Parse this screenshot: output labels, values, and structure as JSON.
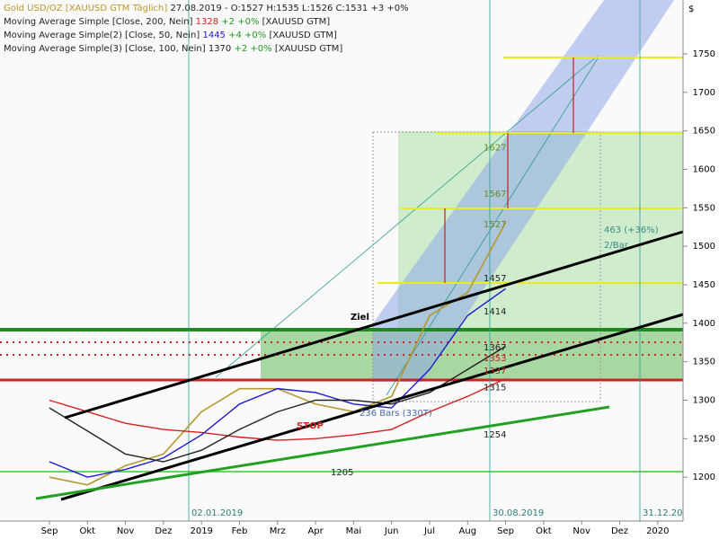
{
  "chart_data": {
    "type": "line",
    "currency": "$",
    "info": "27.08.2019 - O:1527 H:1535 L:1526 C:1531 +3 +0%",
    "categories": [
      "Sep",
      "Okt",
      "Nov",
      "Dez",
      "2019",
      "Feb",
      "Mrz",
      "Apr",
      "Mai",
      "Jun",
      "Jul",
      "Aug",
      "Sep",
      "Okt",
      "Nov",
      "Dez",
      "2020"
    ],
    "series": [
      {
        "name": "Gold USD/OZ [XAUUSD GTM  Täglich]",
        "color": "#b8972e",
        "values": [
          1200,
          1190,
          1215,
          1230,
          1285,
          1315,
          1315,
          1295,
          1285,
          1305,
          1410,
          1440,
          1531,
          null,
          null,
          null,
          null
        ]
      },
      {
        "name": "Moving Average Simple [Close, 200, Nein]",
        "color": "#d42020",
        "last": 1328,
        "change": "+2 +0%",
        "symbol": "[XAUUSD GTM]",
        "values": [
          1300,
          1285,
          1270,
          1262,
          1258,
          1252,
          1248,
          1250,
          1255,
          1262,
          1285,
          1305,
          1328,
          null,
          null,
          null,
          null
        ]
      },
      {
        "name": "Moving Average Simple(2) [Close, 50, Nein]",
        "color": "#1a1ad0",
        "last": 1445,
        "change": "+4 +0%",
        "symbol": "[XAUUSD GTM]",
        "values": [
          1220,
          1200,
          1210,
          1225,
          1255,
          1295,
          1315,
          1310,
          1295,
          1290,
          1340,
          1410,
          1445,
          null,
          null,
          null,
          null
        ]
      },
      {
        "name": "Moving Average Simple(3) [Close, 100, Nein]",
        "color": "#222222",
        "last": 1370,
        "change": "+2 +0%",
        "symbol": "[XAUUSD GTM]",
        "values": [
          1290,
          1260,
          1230,
          1220,
          1235,
          1262,
          1285,
          1300,
          1300,
          1295,
          1310,
          1340,
          1370,
          null,
          null,
          null,
          null
        ]
      }
    ],
    "levels": [
      1205,
      1254,
      1315,
      1337,
      1353,
      1367,
      1414,
      1457,
      1527,
      1567,
      1627
    ],
    "annotations": [
      "Ziel",
      "STOP",
      "236 Bars (330T)",
      "463 (+36%)",
      "2/Bar",
      "02.01.2019",
      "30.08.2019",
      "31.12.20"
    ],
    "ylim": [
      1143,
      1820
    ],
    "yticks": [
      1200,
      1250,
      1300,
      1350,
      1400,
      1450,
      1500,
      1550,
      1600,
      1650,
      1700,
      1750
    ]
  }
}
